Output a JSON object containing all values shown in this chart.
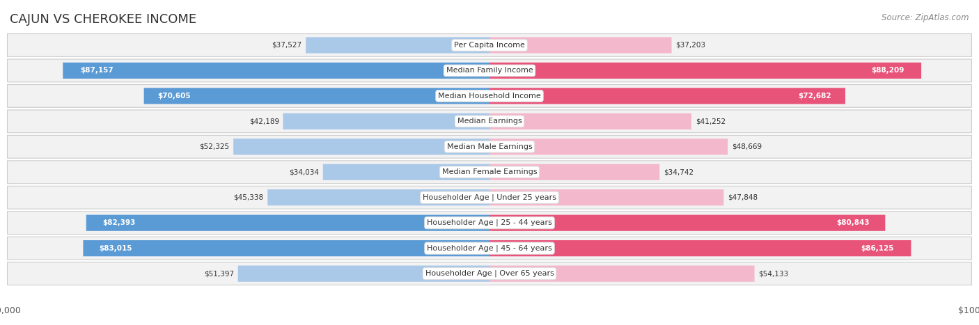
{
  "title": "CAJUN VS CHEROKEE INCOME",
  "source": "Source: ZipAtlas.com",
  "max_value": 100000,
  "categories": [
    "Per Capita Income",
    "Median Family Income",
    "Median Household Income",
    "Median Earnings",
    "Median Male Earnings",
    "Median Female Earnings",
    "Householder Age | Under 25 years",
    "Householder Age | 25 - 44 years",
    "Householder Age | 45 - 64 years",
    "Householder Age | Over 65 years"
  ],
  "cajun_values": [
    37527,
    87157,
    70605,
    42189,
    52325,
    34034,
    45338,
    82393,
    83015,
    51397
  ],
  "cherokee_values": [
    37203,
    88209,
    72682,
    41252,
    48669,
    34742,
    47848,
    80843,
    86125,
    54133
  ],
  "cajun_labels": [
    "$37,527",
    "$87,157",
    "$70,605",
    "$42,189",
    "$52,325",
    "$34,034",
    "$45,338",
    "$82,393",
    "$83,015",
    "$51,397"
  ],
  "cherokee_labels": [
    "$37,203",
    "$88,209",
    "$72,682",
    "$41,252",
    "$48,669",
    "$34,742",
    "$47,848",
    "$80,843",
    "$86,125",
    "$54,133"
  ],
  "cajun_color_light": "#aac8e8",
  "cajun_color_dark": "#5b9bd5",
  "cherokee_color_light": "#f4b8cc",
  "cherokee_color_dark": "#e8537a",
  "threshold": 60000,
  "background_color": "#ffffff",
  "row_bg_light": "#f2f2f2",
  "title_fontsize": 13,
  "label_fontsize": 8.0,
  "value_fontsize": 7.5,
  "legend_fontsize": 9,
  "source_fontsize": 8.5
}
